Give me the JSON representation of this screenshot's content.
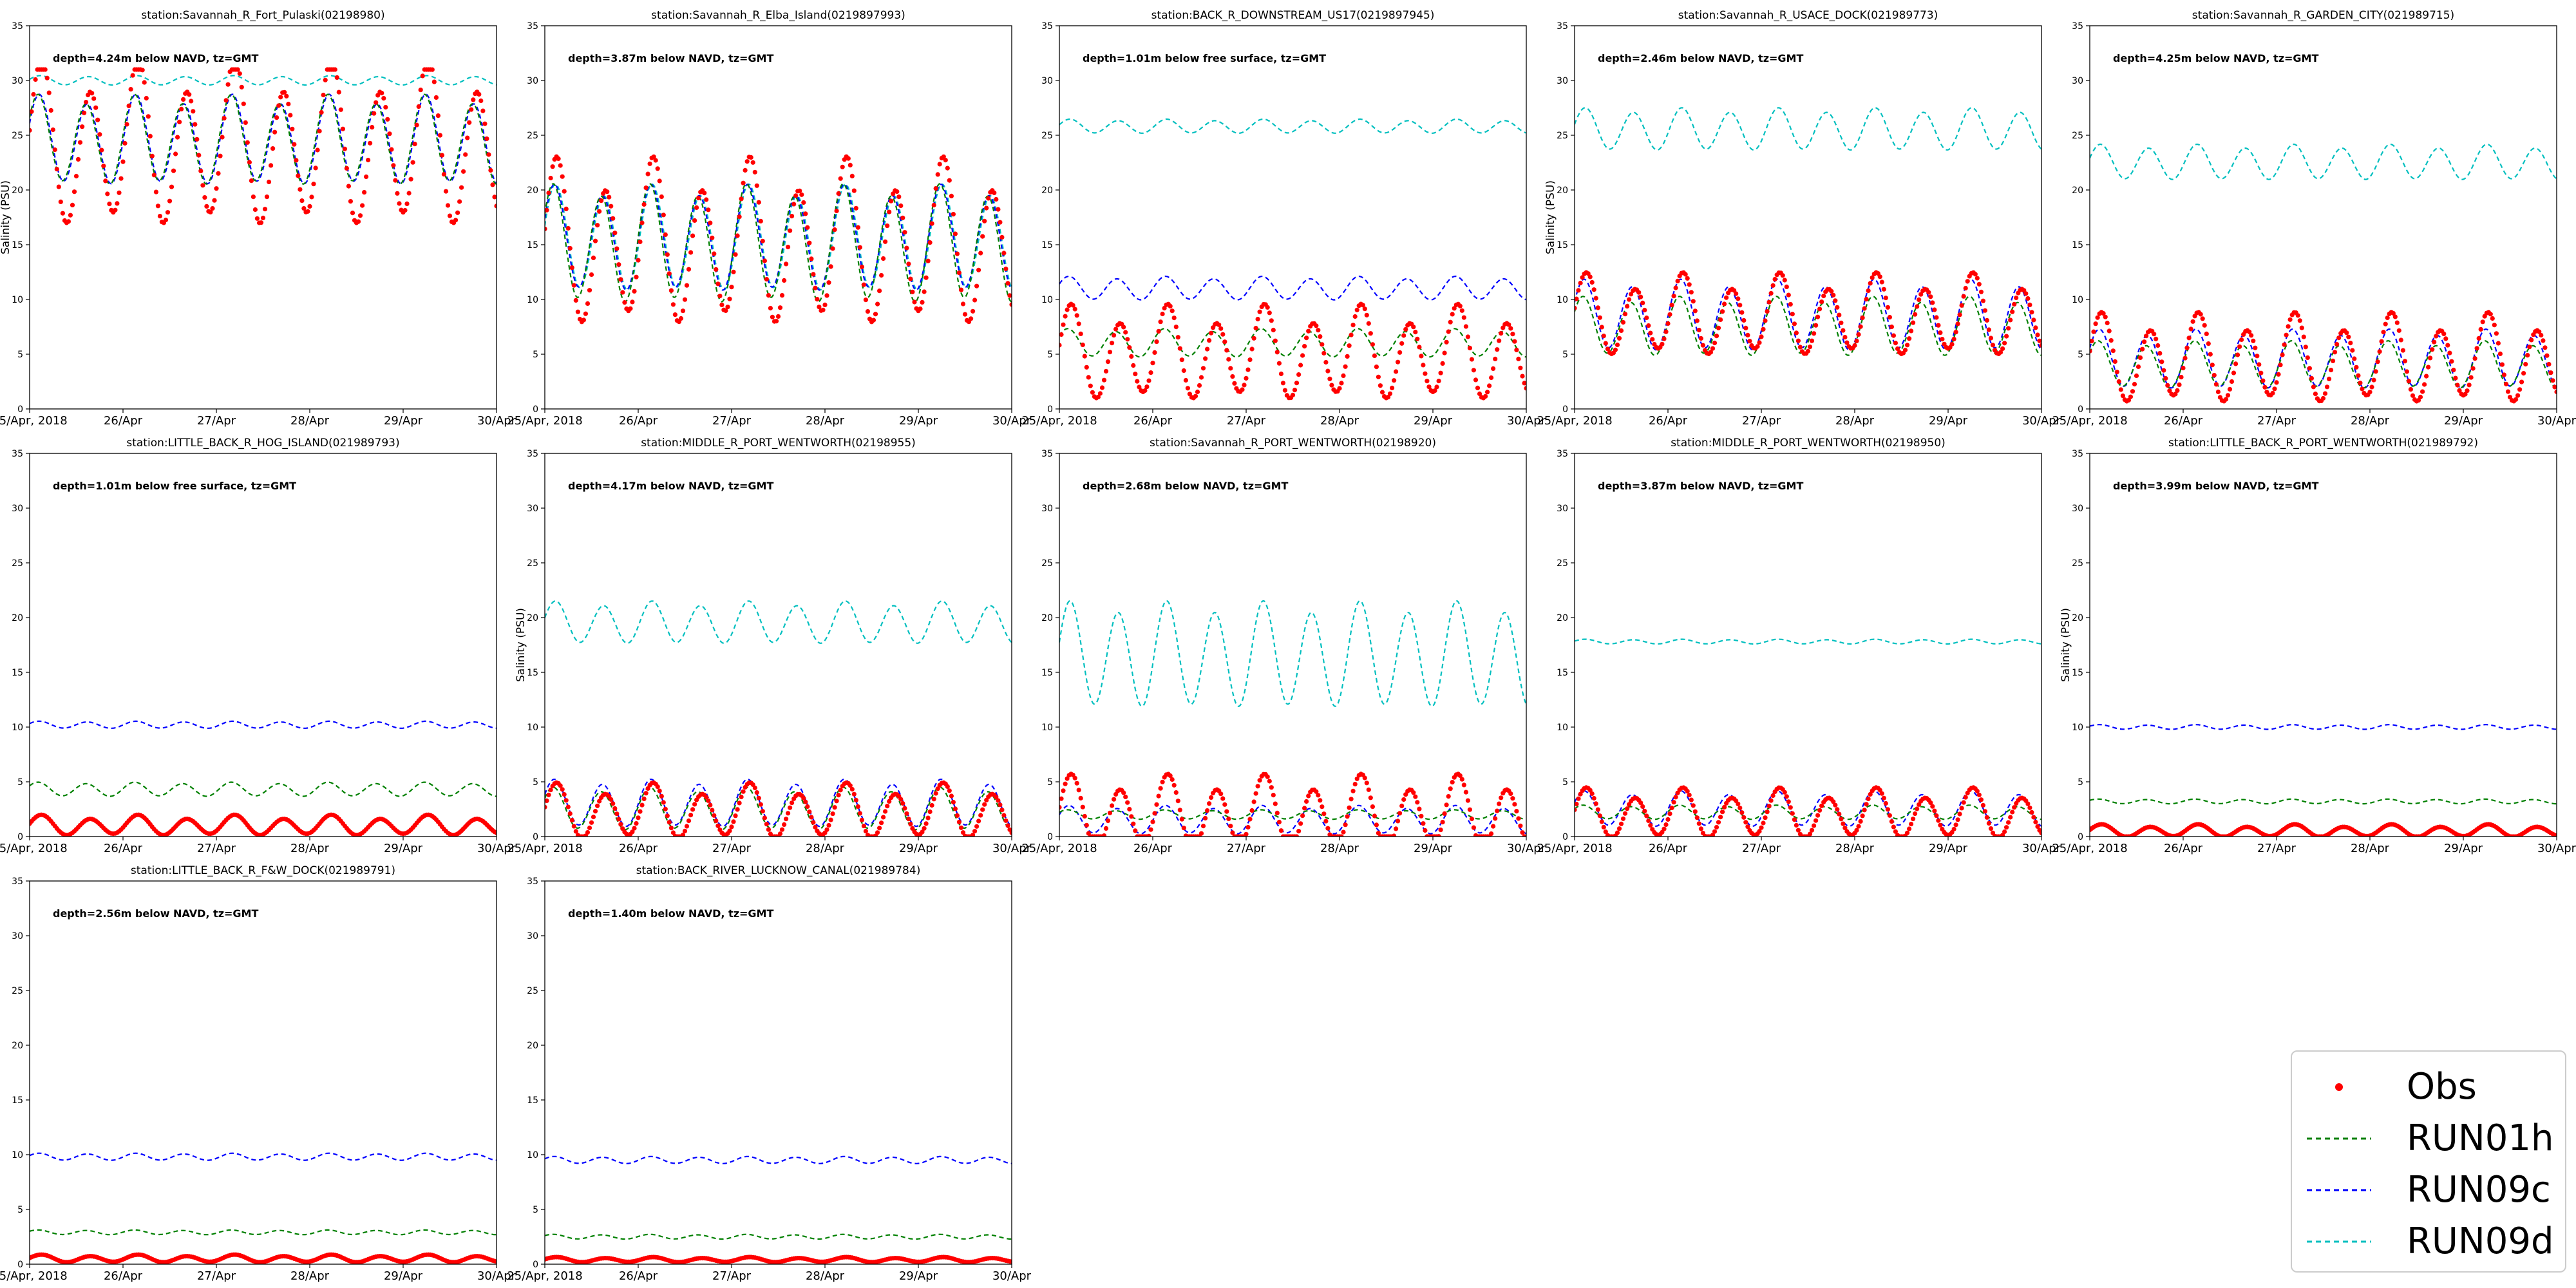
{
  "chart_data": {
    "type": "line",
    "x_tick_labels": [
      "25/Apr, 2018",
      "26/Apr",
      "27/Apr",
      "28/Apr",
      "29/Apr",
      "30/Apr"
    ],
    "x_range": [
      "2018-04-25",
      "2018-04-30"
    ],
    "ylim": [
      0,
      35
    ],
    "y_ticks": [
      0,
      5,
      10,
      15,
      20,
      25,
      30,
      35
    ],
    "ylabel": "Salinity (PSU)",
    "grid": false,
    "legend": {
      "placement": "bottom-right",
      "entries": [
        {
          "label": "Obs",
          "color": "#ff0000",
          "style": "dot"
        },
        {
          "label": "RUN01h",
          "color": "#008000",
          "style": "dashed"
        },
        {
          "label": "RUN09c",
          "color": "#0000ff",
          "style": "dashed"
        },
        {
          "label": "RUN09d",
          "color": "#00bfbf",
          "style": "dashed"
        }
      ]
    },
    "panels": [
      {
        "title": "station:Savannah_R_Fort_Pulaski(02198980)",
        "annotation": "depth=4.24m below NAVD, tz=GMT",
        "ylabel": "Salinity (PSU)",
        "series": {
          "Obs": {
            "mean": 24,
            "amp": 6.5,
            "min": 17,
            "max": 31
          },
          "RUN01h": {
            "mean": 24.5,
            "amp": 3.8
          },
          "RUN09c": {
            "mean": 24.5,
            "amp": 3.8
          },
          "RUN09d": {
            "mean": 30.0,
            "amp": 0.4
          }
        }
      },
      {
        "title": "station:Savannah_R_Elba_Island(0219897993)",
        "annotation": "depth=3.87m below NAVD, tz=GMT",
        "ylabel": "",
        "series": {
          "Obs": {
            "mean": 15,
            "amp": 6.5,
            "min": 7,
            "max": 24
          },
          "RUN01h": {
            "mean": 15,
            "amp": 5.0
          },
          "RUN09c": {
            "mean": 15.5,
            "amp": 4.5
          },
          "RUN09d": {
            "mean": 15.5,
            "amp": 4.5
          }
        }
      },
      {
        "title": "station:BACK_R_DOWNSTREAM_US17(0219897945)",
        "annotation": "depth=1.01m below free surface, tz=GMT",
        "ylabel": "",
        "series": {
          "Obs": {
            "mean": 5,
            "amp": 3.7,
            "min": 1,
            "max": 10
          },
          "RUN01h": {
            "mean": 6,
            "amp": 1.2
          },
          "RUN09c": {
            "mean": 11,
            "amp": 1.0
          },
          "RUN09d": {
            "mean": 25.8,
            "amp": 0.6
          }
        }
      },
      {
        "title": "station:Savannah_R_USACE_DOCK(021989773)",
        "annotation": "depth=2.46m below NAVD, tz=GMT",
        "ylabel": "Salinity (PSU)",
        "series": {
          "Obs": {
            "mean": 8.5,
            "amp": 3.2,
            "min": 3,
            "max": 15
          },
          "RUN01h": {
            "mean": 7.5,
            "amp": 2.5
          },
          "RUN09c": {
            "mean": 8.5,
            "amp": 3.0
          },
          "RUN09d": {
            "mean": 25.5,
            "amp": 1.8
          }
        }
      },
      {
        "title": "station:Savannah_R_GARDEN_CITY(021989715)",
        "annotation": "depth=4.25m below NAVD, tz=GMT",
        "ylabel": "",
        "series": {
          "Obs": {
            "mean": 4.5,
            "amp": 3.5,
            "min": 0,
            "max": 10
          },
          "RUN01h": {
            "mean": 4.0,
            "amp": 2.0
          },
          "RUN09c": {
            "mean": 4.5,
            "amp": 2.5
          },
          "RUN09d": {
            "mean": 22.5,
            "amp": 1.5
          }
        }
      },
      {
        "title": "station:LITTLE_BACK_R_HOG_ISLAND(021989793)",
        "annotation": "depth=1.01m below free surface, tz=GMT",
        "ylabel": "",
        "series": {
          "Obs": {
            "mean": 1.0,
            "amp": 0.8,
            "min": 0,
            "max": 2.5
          },
          "RUN01h": {
            "mean": 4.3,
            "amp": 0.6
          },
          "RUN09c": {
            "mean": 10.2,
            "amp": 0.3
          }
        }
      },
      {
        "title": "station:MIDDLE_R_PORT_WENTWORTH(02198955)",
        "annotation": "depth=4.17m below NAVD, tz=GMT",
        "ylabel": "Salinity (PSU)",
        "series": {
          "Obs": {
            "mean": 2.2,
            "amp": 2.2,
            "min": 0,
            "max": 6.5
          },
          "RUN01h": {
            "mean": 2.5,
            "amp": 1.8
          },
          "RUN09c": {
            "mean": 3.0,
            "amp": 2.0
          },
          "RUN09d": {
            "mean": 19.5,
            "amp": 1.8
          }
        }
      },
      {
        "title": "station:Savannah_R_PORT_WENTWORTH(02198920)",
        "annotation": "depth=2.68m below NAVD, tz=GMT",
        "ylabel": "",
        "series": {
          "Obs": {
            "mean": 2.0,
            "amp": 3.0,
            "min": 0,
            "max": 9.5
          },
          "RUN01h": {
            "mean": 2.0,
            "amp": 0.4
          },
          "RUN09c": {
            "mean": 1.5,
            "amp": 1.2
          },
          "RUN09d": {
            "mean": 16.5,
            "amp": 4.5
          }
        }
      },
      {
        "title": "station:MIDDLE_R_PORT_WENTWORTH(02198950)",
        "annotation": "depth=3.87m below NAVD, tz=GMT",
        "ylabel": "",
        "series": {
          "Obs": {
            "mean": 2.0,
            "amp": 2.0,
            "min": 0,
            "max": 6
          },
          "RUN01h": {
            "mean": 2.2,
            "amp": 0.6
          },
          "RUN09c": {
            "mean": 2.5,
            "amp": 1.5
          },
          "RUN09d": {
            "mean": 17.8,
            "amp": 0.2
          }
        }
      },
      {
        "title": "station:LITTLE_BACK_R_PORT_WENTWORTH(021989792)",
        "annotation": "depth=3.99m below NAVD, tz=GMT",
        "ylabel": "Salinity (PSU)",
        "series": {
          "Obs": {
            "mean": 0.5,
            "amp": 0.5,
            "min": 0,
            "max": 3
          },
          "RUN01h": {
            "mean": 3.2,
            "amp": 0.2
          },
          "RUN09c": {
            "mean": 10.0,
            "amp": 0.2
          }
        }
      },
      {
        "title": "station:LITTLE_BACK_R_F&W_DOCK(021989791)",
        "annotation": "depth=2.56m below NAVD, tz=GMT",
        "ylabel": "",
        "series": {
          "Obs": {
            "mean": 0.5,
            "amp": 0.3,
            "min": 0,
            "max": 2
          },
          "RUN01h": {
            "mean": 2.9,
            "amp": 0.2
          },
          "RUN09c": {
            "mean": 9.8,
            "amp": 0.3
          }
        }
      },
      {
        "title": "station:BACK_RIVER_LUCKNOW_CANAL(021989784)",
        "annotation": "depth=1.40m below NAVD, tz=GMT",
        "ylabel": "",
        "series": {
          "Obs": {
            "mean": 0.4,
            "amp": 0.2,
            "min": 0,
            "max": 1
          },
          "RUN01h": {
            "mean": 2.5,
            "amp": 0.2
          },
          "RUN09c": {
            "mean": 9.5,
            "amp": 0.3
          }
        }
      }
    ]
  }
}
